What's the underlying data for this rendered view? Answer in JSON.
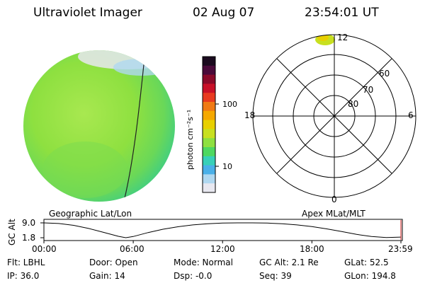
{
  "header": {
    "instrument": "Ultraviolet Imager",
    "date": "02 Aug 07",
    "time": "23:54:01  UT"
  },
  "colorbar": {
    "unit_label": "photon cm⁻²s⁻¹",
    "ticks": [
      "100",
      "10"
    ],
    "scale": "log",
    "colors": [
      "#1a0a1e",
      "#4a0a3a",
      "#8a0a2a",
      "#c81028",
      "#e83a20",
      "#f07a14",
      "#f5a800",
      "#e8d000",
      "#c8e020",
      "#8ee040",
      "#4ed860",
      "#38d0b8",
      "#4ab0e8",
      "#b0d8f0",
      "#e8e8f0"
    ]
  },
  "left_panel": {
    "label": "Geographic Lat/Lon",
    "disk_color": "#8ee040",
    "edge_color": "#4ed860"
  },
  "right_panel": {
    "label": "Apex  MLat/MLT",
    "mlt_labels": {
      "top": "12",
      "right": "6",
      "bottom": "0",
      "left": "18"
    },
    "lat_labels": [
      "80",
      "70",
      "60"
    ]
  },
  "chart_data": {
    "type": "line",
    "ylabel": "GC Alt",
    "yticks": [
      "9.0",
      "1.8"
    ],
    "ylim": [
      1.8,
      9.0
    ],
    "xticks": [
      "00:00",
      "06:00",
      "12:00",
      "18:00",
      "23:59"
    ],
    "series": [
      {
        "x": [
          0,
          1,
          2,
          3,
          4,
          5,
          5.5,
          6,
          7,
          8,
          9,
          10,
          11,
          12,
          13,
          14,
          15,
          16,
          17,
          18,
          19,
          20,
          21,
          22,
          23,
          23.98
        ],
        "y": [
          9.0,
          8.7,
          7.8,
          6.3,
          4.4,
          2.5,
          1.8,
          2.4,
          4.3,
          5.9,
          7.1,
          8.0,
          8.6,
          8.9,
          9.0,
          9.0,
          8.9,
          8.6,
          8.0,
          7.2,
          6.1,
          4.8,
          3.4,
          2.4,
          1.9,
          2.1
        ]
      }
    ]
  },
  "footer": {
    "rows": [
      [
        "Flt: LBHL",
        "Door: Open",
        "Mode: Normal",
        "GC Alt: 2.1 Re",
        "GLat:  52.5"
      ],
      [
        "IP: 36.0",
        "Gain: 14",
        "Dsp:   -0.0",
        "Seq: 39",
        "GLon: 194.8"
      ]
    ]
  }
}
